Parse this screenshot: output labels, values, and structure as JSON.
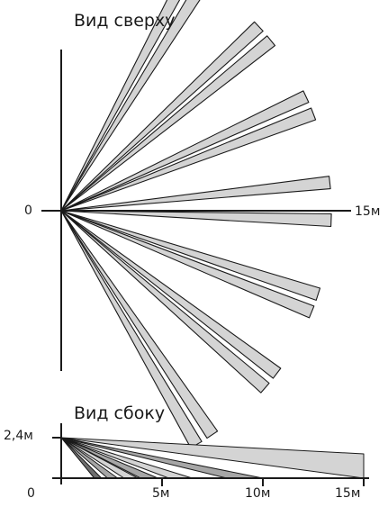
{
  "top_view": {
    "title": "Вид сверху",
    "origin_label": "0",
    "range_label": "15м",
    "beams": [
      {
        "angle_deg": 62,
        "range": 15
      },
      {
        "angle_deg": 58,
        "range": 15
      },
      {
        "angle_deg": 43,
        "range": 15
      },
      {
        "angle_deg": 39,
        "range": 15
      },
      {
        "angle_deg": 25,
        "range": 15
      },
      {
        "angle_deg": 21,
        "range": 15
      },
      {
        "angle_deg": 6,
        "range": 15
      },
      {
        "angle_deg": -2,
        "range": 15
      },
      {
        "angle_deg": -18,
        "range": 15
      },
      {
        "angle_deg": -22,
        "range": 15
      },
      {
        "angle_deg": -37,
        "range": 15
      },
      {
        "angle_deg": -41,
        "range": 15
      },
      {
        "angle_deg": -56,
        "range": 15
      },
      {
        "angle_deg": -60,
        "range": 15
      }
    ]
  },
  "side_view": {
    "title": "Вид сбоку",
    "height_label": "2,4м",
    "x_labels": [
      "0",
      "5м",
      "10м",
      "15м"
    ],
    "x_ticks": [
      0,
      5,
      10,
      15
    ],
    "mount_height": 2.4,
    "beams": [
      {
        "reach": 15,
        "far_top": 2.4,
        "shade": "light"
      },
      {
        "reach": 10,
        "shade": "medium"
      },
      {
        "reach": 6.5,
        "shade": "light"
      },
      {
        "reach": 4.8,
        "shade": "medium"
      },
      {
        "reach": 3.8,
        "shade": "light"
      },
      {
        "reach": 2.8,
        "shade": "medium"
      },
      {
        "reach": 2.0,
        "shade": "dark"
      }
    ]
  },
  "colors": {
    "beam_fill": "#d4d4d4",
    "beam_medium": "#a6a6a6",
    "beam_dark": "#6e6e6e",
    "outline": "#1a1a1a"
  }
}
